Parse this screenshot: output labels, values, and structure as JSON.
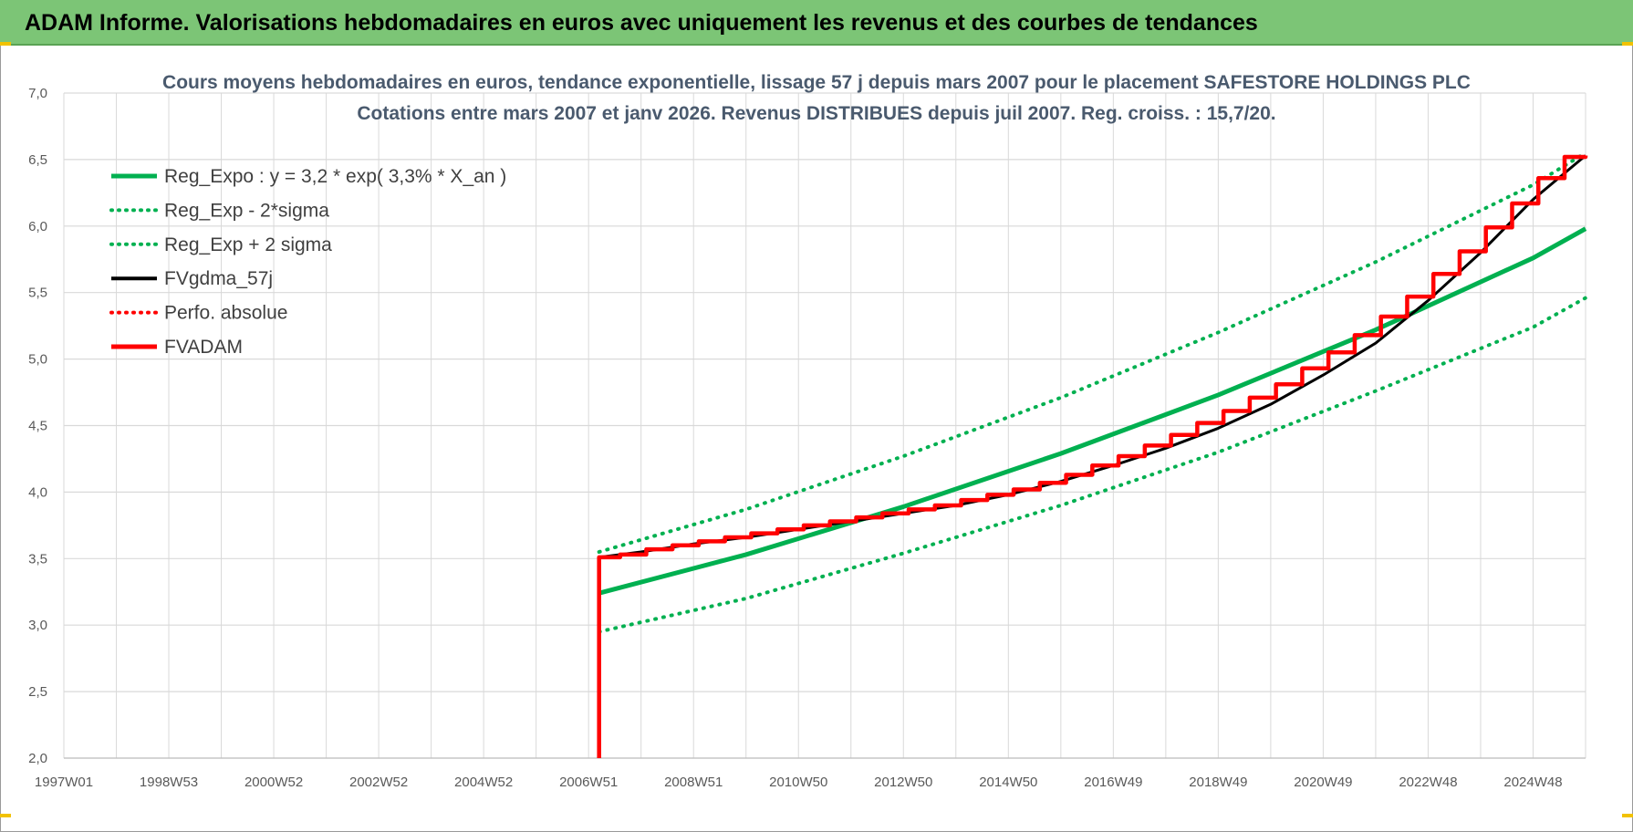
{
  "header": {
    "title": "ADAM Informe. Valorisations hebdomadaires en euros avec uniquement les revenus et des courbes de tendances"
  },
  "colors": {
    "banner": "#7cc576",
    "green": "#00b050",
    "red": "#ff0000",
    "black": "#000000",
    "grid": "#d9d9d9"
  },
  "chart_data": {
    "type": "line",
    "title": "Cours moyens hebdomadaires en euros, tendance exponentielle, lissage 57 j depuis mars 2007 pour le placement SAFESTORE HOLDINGS PLC",
    "subtitle": "Cotations entre mars 2007 et janv 2026. Revenus DISTRIBUES depuis juil 2007. Reg. croiss. : 15,7/20.",
    "xlabel": "",
    "ylabel": "",
    "ylim": [
      2.0,
      7.0
    ],
    "xlim": [
      1997.0,
      2026.0
    ],
    "y_ticks": [
      "2,0",
      "2,5",
      "3,0",
      "3,5",
      "4,0",
      "4,5",
      "5,0",
      "5,5",
      "6,0",
      "6,5",
      "7,0"
    ],
    "x_ticks": [
      {
        "label": "1997W01",
        "x": 1997.0
      },
      {
        "label": "1998W53",
        "x": 1999.0
      },
      {
        "label": "2000W52",
        "x": 2001.0
      },
      {
        "label": "2002W52",
        "x": 2003.0
      },
      {
        "label": "2004W52",
        "x": 2005.0
      },
      {
        "label": "2006W51",
        "x": 2007.0
      },
      {
        "label": "2008W51",
        "x": 2009.0
      },
      {
        "label": "2010W50",
        "x": 2011.0
      },
      {
        "label": "2012W50",
        "x": 2013.0
      },
      {
        "label": "2014W50",
        "x": 2015.0
      },
      {
        "label": "2016W49",
        "x": 2017.0
      },
      {
        "label": "2018W49",
        "x": 2019.0
      },
      {
        "label": "2020W49",
        "x": 2021.0
      },
      {
        "label": "2022W48",
        "x": 2023.0
      },
      {
        "label": "2024W48",
        "x": 2025.0
      }
    ],
    "grid": true,
    "legend_position": "top-left",
    "series": [
      {
        "name": "Reg_Expo : y = 3,2 * exp( 3,3% *  X_an )",
        "style": "solid",
        "color": "#00b050",
        "x": [
          2007.2,
          2010.0,
          2013.0,
          2016.0,
          2019.0,
          2022.0,
          2025.0,
          2026.0
        ],
        "y": [
          3.24,
          3.53,
          3.89,
          4.29,
          4.73,
          5.22,
          5.76,
          5.98
        ]
      },
      {
        "name": "Reg_Exp - 2*sigma",
        "style": "dotted",
        "color": "#00b050",
        "x": [
          2007.2,
          2010.0,
          2013.0,
          2016.0,
          2019.0,
          2022.0,
          2025.0,
          2026.0
        ],
        "y": [
          2.95,
          3.2,
          3.54,
          3.9,
          4.3,
          4.76,
          5.24,
          5.46
        ]
      },
      {
        "name": "Reg_Exp + 2 sigma",
        "style": "dotted",
        "color": "#00b050",
        "x": [
          2007.2,
          2010.0,
          2013.0,
          2016.0,
          2019.0,
          2022.0,
          2025.0,
          2026.0
        ],
        "y": [
          3.55,
          3.87,
          4.27,
          4.71,
          5.2,
          5.73,
          6.31,
          6.55
        ]
      },
      {
        "name": "FVgdma_57j",
        "style": "solid",
        "color": "#000000",
        "x": [
          2007.2,
          2008.0,
          2009.0,
          2010.0,
          2011.0,
          2012.0,
          2013.0,
          2014.0,
          2015.0,
          2016.0,
          2017.0,
          2018.0,
          2019.0,
          2020.0,
          2021.0,
          2022.0,
          2023.0,
          2024.0,
          2025.0,
          2026.0
        ],
        "y": [
          3.51,
          3.55,
          3.61,
          3.66,
          3.72,
          3.78,
          3.84,
          3.9,
          3.98,
          4.08,
          4.2,
          4.33,
          4.48,
          4.66,
          4.88,
          5.12,
          5.44,
          5.8,
          6.2,
          6.53
        ]
      },
      {
        "name": "Perfo. absolue",
        "style": "dotted",
        "color": "#ff0000",
        "x": [],
        "y": []
      },
      {
        "name": "FVADAM",
        "style": "step",
        "color": "#ff0000",
        "x": [
          2007.2,
          2007.2,
          2007.6,
          2008.1,
          2008.6,
          2009.1,
          2009.6,
          2010.1,
          2010.6,
          2011.1,
          2011.6,
          2012.1,
          2012.6,
          2013.1,
          2013.6,
          2014.1,
          2014.6,
          2015.1,
          2015.6,
          2016.1,
          2016.6,
          2017.1,
          2017.6,
          2018.1,
          2018.6,
          2019.1,
          2019.6,
          2020.1,
          2020.6,
          2021.1,
          2021.6,
          2022.1,
          2022.6,
          2023.1,
          2023.6,
          2024.1,
          2024.6,
          2025.1,
          2025.6,
          2026.0
        ],
        "y": [
          2.0,
          3.51,
          3.53,
          3.57,
          3.6,
          3.63,
          3.66,
          3.69,
          3.72,
          3.75,
          3.78,
          3.81,
          3.84,
          3.87,
          3.9,
          3.94,
          3.98,
          4.02,
          4.07,
          4.13,
          4.2,
          4.27,
          4.35,
          4.43,
          4.52,
          4.61,
          4.71,
          4.81,
          4.93,
          5.05,
          5.18,
          5.32,
          5.47,
          5.64,
          5.81,
          5.99,
          6.17,
          6.36,
          6.52,
          6.53
        ]
      }
    ]
  }
}
